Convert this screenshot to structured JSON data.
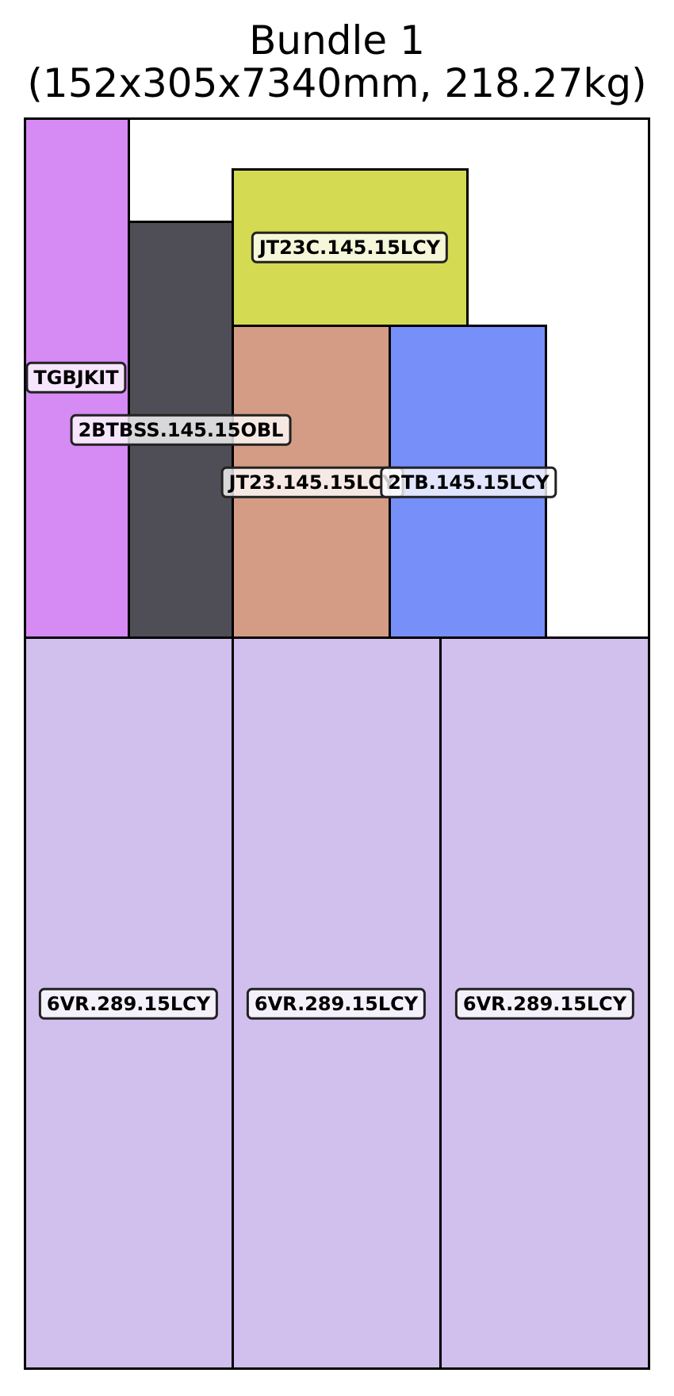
{
  "title": {
    "line1": "Bundle 1",
    "line2": "(152x305x7340mm, 218.27kg)"
  },
  "pieces": [
    {
      "id": "tgbjkit",
      "label": "TGBJKIT",
      "color": "#d68af3"
    },
    {
      "id": "2btbss",
      "label": "2BTBSS.145.15OBL",
      "color": "#4f4e56"
    },
    {
      "id": "jt23c",
      "label": "JT23C.145.15LCY",
      "color": "#d4da52"
    },
    {
      "id": "jt23",
      "label": "JT23.145.15LCY",
      "color": "#d49c85"
    },
    {
      "id": "2tb",
      "label": "2TB.145.15LCY",
      "color": "#778ff9"
    },
    {
      "id": "6vr-1",
      "label": "6VR.289.15LCY",
      "color": "#d1bfee"
    },
    {
      "id": "6vr-2",
      "label": "6VR.289.15LCY",
      "color": "#d1bfee"
    },
    {
      "id": "6vr-3",
      "label": "6VR.289.15LCY",
      "color": "#d1bfee"
    }
  ]
}
